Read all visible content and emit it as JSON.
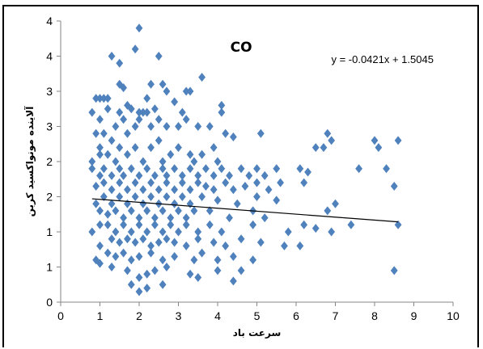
{
  "chart_data": {
    "type": "scatter",
    "title": "CO",
    "xlabel": "سرعت باد",
    "ylabel": "آلاینده مونواکسید کربن",
    "equation": "y = -0.0421x + 1.5045",
    "xlim": [
      0,
      10
    ],
    "ylim": [
      0,
      4
    ],
    "x_ticks": [
      "0",
      "1",
      "2",
      "3",
      "4",
      "5",
      "6",
      "7",
      "8",
      "9",
      "10"
    ],
    "y_ticks": [
      "0",
      "1",
      "1",
      "2",
      "2",
      "3",
      "3",
      "4",
      "4"
    ],
    "grid": false,
    "marker_color": "#4F81BD",
    "trendline": {
      "slope": -0.0421,
      "intercept": 1.5045,
      "x_start": 0.8,
      "x_end": 8.6
    },
    "points": [
      [
        2.0,
        3.9
      ],
      [
        1.9,
        3.6
      ],
      [
        1.3,
        3.5
      ],
      [
        2.5,
        3.5
      ],
      [
        1.5,
        3.4
      ],
      [
        3.6,
        3.2
      ],
      [
        1.5,
        3.1
      ],
      [
        1.6,
        3.05
      ],
      [
        3.2,
        3.0
      ],
      [
        3.3,
        3.0
      ],
      [
        2.3,
        3.1
      ],
      [
        2.6,
        3.1
      ],
      [
        2.7,
        3.0
      ],
      [
        0.9,
        2.9
      ],
      [
        1.0,
        2.9
      ],
      [
        1.1,
        2.9
      ],
      [
        1.2,
        2.9
      ],
      [
        1.7,
        2.8
      ],
      [
        2.2,
        2.9
      ],
      [
        2.9,
        2.85
      ],
      [
        4.1,
        2.8
      ],
      [
        0.8,
        2.7
      ],
      [
        1.0,
        2.6
      ],
      [
        1.2,
        2.75
      ],
      [
        1.5,
        2.7
      ],
      [
        1.8,
        2.75
      ],
      [
        2.0,
        2.7
      ],
      [
        2.1,
        2.7
      ],
      [
        2.2,
        2.7
      ],
      [
        2.4,
        2.75
      ],
      [
        3.1,
        2.7
      ],
      [
        4.1,
        2.7
      ],
      [
        0.9,
        2.4
      ],
      [
        1.0,
        2.2
      ],
      [
        1.1,
        2.4
      ],
      [
        1.3,
        2.3
      ],
      [
        1.4,
        2.5
      ],
      [
        1.6,
        2.6
      ],
      [
        1.7,
        2.4
      ],
      [
        1.9,
        2.5
      ],
      [
        2.0,
        2.6
      ],
      [
        2.3,
        2.5
      ],
      [
        2.5,
        2.6
      ],
      [
        2.7,
        2.5
      ],
      [
        3.0,
        2.5
      ],
      [
        3.2,
        2.6
      ],
      [
        3.5,
        2.5
      ],
      [
        3.8,
        2.5
      ],
      [
        4.2,
        2.4
      ],
      [
        4.4,
        2.35
      ],
      [
        5.1,
        2.4
      ],
      [
        6.8,
        2.4
      ],
      [
        8.0,
        2.3
      ],
      [
        0.8,
        2.0
      ],
      [
        1.0,
        2.1
      ],
      [
        1.2,
        2.1
      ],
      [
        1.4,
        2.0
      ],
      [
        1.5,
        2.2
      ],
      [
        1.7,
        2.1
      ],
      [
        1.9,
        2.2
      ],
      [
        2.1,
        2.0
      ],
      [
        2.3,
        2.2
      ],
      [
        2.5,
        2.3
      ],
      [
        2.6,
        2.0
      ],
      [
        2.8,
        2.1
      ],
      [
        3.0,
        2.2
      ],
      [
        3.3,
        2.1
      ],
      [
        3.4,
        2.0
      ],
      [
        3.6,
        2.1
      ],
      [
        3.9,
        2.2
      ],
      [
        4.0,
        2.0
      ],
      [
        6.5,
        2.2
      ],
      [
        6.7,
        2.2
      ],
      [
        6.9,
        2.3
      ],
      [
        8.1,
        2.2
      ],
      [
        8.6,
        2.3
      ],
      [
        0.8,
        1.9
      ],
      [
        1.0,
        1.8
      ],
      [
        1.1,
        1.9
      ],
      [
        1.3,
        1.8
      ],
      [
        1.5,
        1.9
      ],
      [
        1.6,
        1.8
      ],
      [
        1.8,
        1.9
      ],
      [
        2.0,
        1.8
      ],
      [
        2.2,
        1.9
      ],
      [
        2.4,
        1.8
      ],
      [
        2.6,
        1.9
      ],
      [
        2.7,
        1.8
      ],
      [
        2.9,
        1.9
      ],
      [
        3.1,
        1.8
      ],
      [
        3.3,
        1.9
      ],
      [
        3.5,
        1.8
      ],
      [
        3.7,
        1.9
      ],
      [
        3.9,
        1.8
      ],
      [
        4.1,
        1.9
      ],
      [
        4.3,
        1.8
      ],
      [
        4.6,
        1.9
      ],
      [
        4.8,
        1.8
      ],
      [
        5.0,
        1.9
      ],
      [
        5.2,
        1.8
      ],
      [
        5.5,
        1.9
      ],
      [
        6.1,
        1.9
      ],
      [
        6.3,
        1.85
      ],
      [
        7.6,
        1.9
      ],
      [
        8.3,
        1.9
      ],
      [
        0.9,
        1.65
      ],
      [
        1.1,
        1.7
      ],
      [
        1.3,
        1.6
      ],
      [
        1.5,
        1.7
      ],
      [
        1.7,
        1.6
      ],
      [
        1.9,
        1.7
      ],
      [
        2.1,
        1.6
      ],
      [
        2.3,
        1.7
      ],
      [
        2.5,
        1.6
      ],
      [
        2.7,
        1.7
      ],
      [
        2.9,
        1.6
      ],
      [
        3.1,
        1.7
      ],
      [
        3.3,
        1.6
      ],
      [
        3.5,
        1.7
      ],
      [
        3.7,
        1.65
      ],
      [
        3.9,
        1.6
      ],
      [
        4.2,
        1.7
      ],
      [
        4.4,
        1.6
      ],
      [
        4.7,
        1.65
      ],
      [
        5.0,
        1.7
      ],
      [
        5.3,
        1.6
      ],
      [
        5.6,
        1.7
      ],
      [
        6.2,
        1.7
      ],
      [
        8.5,
        1.65
      ],
      [
        0.9,
        1.4
      ],
      [
        1.1,
        1.5
      ],
      [
        1.3,
        1.4
      ],
      [
        1.5,
        1.5
      ],
      [
        1.7,
        1.4
      ],
      [
        1.9,
        1.5
      ],
      [
        2.1,
        1.4
      ],
      [
        2.3,
        1.5
      ],
      [
        2.5,
        1.4
      ],
      [
        2.7,
        1.5
      ],
      [
        2.9,
        1.4
      ],
      [
        3.1,
        1.5
      ],
      [
        3.3,
        1.4
      ],
      [
        3.6,
        1.5
      ],
      [
        4.0,
        1.45
      ],
      [
        4.5,
        1.4
      ],
      [
        5.0,
        1.5
      ],
      [
        5.5,
        1.45
      ],
      [
        7.0,
        1.4
      ],
      [
        1.0,
        1.3
      ],
      [
        1.2,
        1.25
      ],
      [
        1.4,
        1.3
      ],
      [
        1.6,
        1.2
      ],
      [
        1.8,
        1.3
      ],
      [
        2.0,
        1.2
      ],
      [
        2.2,
        1.3
      ],
      [
        2.4,
        1.2
      ],
      [
        2.6,
        1.3
      ],
      [
        2.8,
        1.2
      ],
      [
        3.0,
        1.3
      ],
      [
        3.2,
        1.2
      ],
      [
        3.4,
        1.3
      ],
      [
        3.8,
        1.3
      ],
      [
        4.3,
        1.2
      ],
      [
        4.9,
        1.3
      ],
      [
        5.2,
        1.2
      ],
      [
        6.8,
        1.3
      ],
      [
        0.8,
        1.0
      ],
      [
        1.0,
        1.1
      ],
      [
        1.2,
        1.1
      ],
      [
        1.4,
        1.0
      ],
      [
        1.6,
        1.1
      ],
      [
        1.8,
        1.0
      ],
      [
        2.0,
        1.1
      ],
      [
        2.2,
        1.0
      ],
      [
        2.4,
        1.1
      ],
      [
        2.6,
        1.0
      ],
      [
        2.8,
        1.1
      ],
      [
        3.0,
        1.0
      ],
      [
        3.2,
        1.1
      ],
      [
        3.5,
        1.0
      ],
      [
        3.8,
        1.1
      ],
      [
        4.1,
        1.0
      ],
      [
        4.9,
        1.1
      ],
      [
        5.8,
        1.0
      ],
      [
        6.2,
        1.1
      ],
      [
        6.5,
        1.05
      ],
      [
        6.9,
        1.0
      ],
      [
        7.4,
        1.1
      ],
      [
        8.6,
        1.1
      ],
      [
        1.0,
        0.8
      ],
      [
        1.3,
        0.9
      ],
      [
        1.5,
        0.85
      ],
      [
        1.7,
        0.9
      ],
      [
        1.9,
        0.85
      ],
      [
        2.1,
        0.9
      ],
      [
        2.3,
        0.8
      ],
      [
        2.5,
        0.85
      ],
      [
        2.7,
        0.9
      ],
      [
        2.9,
        0.85
      ],
      [
        3.2,
        0.8
      ],
      [
        3.5,
        0.9
      ],
      [
        3.9,
        0.85
      ],
      [
        4.2,
        0.8
      ],
      [
        4.6,
        0.9
      ],
      [
        5.1,
        0.85
      ],
      [
        5.7,
        0.8
      ],
      [
        6.1,
        0.8
      ],
      [
        0.9,
        0.6
      ],
      [
        1.2,
        0.7
      ],
      [
        1.4,
        0.65
      ],
      [
        1.6,
        0.7
      ],
      [
        1.8,
        0.6
      ],
      [
        2.0,
        0.65
      ],
      [
        2.3,
        0.7
      ],
      [
        2.6,
        0.6
      ],
      [
        2.9,
        0.65
      ],
      [
        3.4,
        0.6
      ],
      [
        3.6,
        0.7
      ],
      [
        4.0,
        0.6
      ],
      [
        4.4,
        0.65
      ],
      [
        4.9,
        0.6
      ],
      [
        1.0,
        0.55
      ],
      [
        1.3,
        0.5
      ],
      [
        1.7,
        0.45
      ],
      [
        2.0,
        0.35
      ],
      [
        2.2,
        0.4
      ],
      [
        2.4,
        0.45
      ],
      [
        2.7,
        0.5
      ],
      [
        3.3,
        0.4
      ],
      [
        3.5,
        0.35
      ],
      [
        4.0,
        0.45
      ],
      [
        4.4,
        0.3
      ],
      [
        4.6,
        0.45
      ],
      [
        8.5,
        0.45
      ],
      [
        1.8,
        0.25
      ],
      [
        2.0,
        0.15
      ],
      [
        2.2,
        0.2
      ],
      [
        2.6,
        0.25
      ]
    ]
  }
}
